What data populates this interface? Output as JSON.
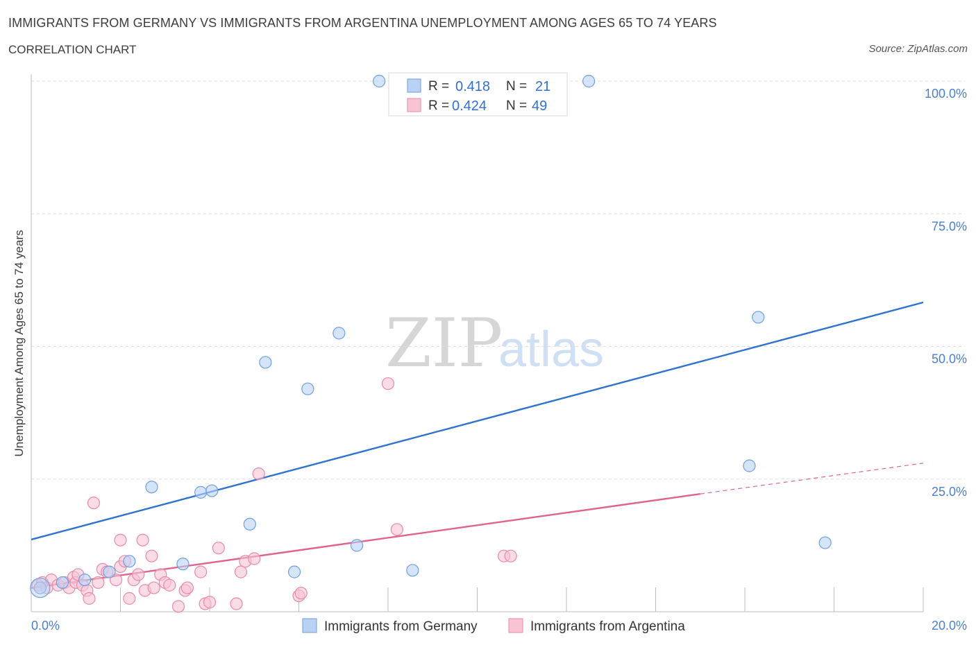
{
  "header": {
    "title": "IMMIGRANTS FROM GERMANY VS IMMIGRANTS FROM ARGENTINA UNEMPLOYMENT AMONG AGES 65 TO 74 YEARS",
    "subtitle": "CORRELATION CHART",
    "source": "Source: ZipAtlas.com"
  },
  "watermark": {
    "zip": "ZIP",
    "atlas": "atlas"
  },
  "legend": {
    "r_label": "R =",
    "n_label": "N =",
    "germany": {
      "r": "0.418",
      "n": "21"
    },
    "argentina": {
      "r": "0.424",
      "n": "49"
    }
  },
  "chart_data": {
    "type": "scatter",
    "title": "IMMIGRANTS FROM GERMANY VS IMMIGRANTS FROM ARGENTINA UNEMPLOYMENT AMONG AGES 65 TO 74 YEARS",
    "subtitle": "CORRELATION CHART",
    "xlabel": "",
    "ylabel": "Unemployment Among Ages 65 to 74 years",
    "xlim": [
      0,
      20
    ],
    "ylim": [
      0,
      100
    ],
    "x_tick_labels": [
      "0.0%",
      "20.0%"
    ],
    "y_tick_labels": [
      "100.0%",
      "75.0%",
      "50.0%",
      "25.0%"
    ],
    "y_ticks": [
      100,
      75,
      50,
      25
    ],
    "x_minor_ticks": [
      2,
      4,
      6,
      8,
      10,
      12,
      14,
      16,
      18,
      20
    ],
    "colors": {
      "germany_fill": "#b9d2f3",
      "germany_stroke": "#6d9fe0",
      "germany_line": "#2f72d0",
      "argentina_fill": "#f8c3d3",
      "argentina_stroke": "#e68aa8",
      "argentina_line": "#e0628f"
    },
    "series": [
      {
        "name": "Immigrants from Germany",
        "points": [
          [
            0.2,
            4.5
          ],
          [
            0.7,
            5.5
          ],
          [
            1.2,
            6.0
          ],
          [
            1.75,
            7.5
          ],
          [
            2.2,
            9.5
          ],
          [
            2.7,
            23.5
          ],
          [
            3.4,
            9.0
          ],
          [
            3.8,
            22.5
          ],
          [
            4.05,
            22.8
          ],
          [
            4.9,
            16.5
          ],
          [
            5.25,
            47.0
          ],
          [
            5.9,
            7.5
          ],
          [
            6.2,
            42.0
          ],
          [
            6.9,
            52.5
          ],
          [
            7.3,
            12.5
          ],
          [
            7.8,
            100
          ],
          [
            8.55,
            7.8
          ],
          [
            12.5,
            100
          ],
          [
            16.1,
            27.5
          ],
          [
            16.3,
            55.5
          ],
          [
            17.8,
            13.0
          ]
        ],
        "trend": {
          "x0": 0,
          "y0": 13.6,
          "x1": 20,
          "y1": 58.3,
          "dashed_from": null
        }
      },
      {
        "name": "Immigrants from Argentina",
        "points": [
          [
            0.15,
            5.0
          ],
          [
            0.25,
            5.5
          ],
          [
            0.35,
            4.5
          ],
          [
            0.45,
            6.0
          ],
          [
            0.6,
            5.0
          ],
          [
            0.75,
            5.5
          ],
          [
            0.85,
            4.5
          ],
          [
            0.95,
            6.5
          ],
          [
            1.0,
            5.5
          ],
          [
            1.05,
            7.0
          ],
          [
            1.15,
            5.0
          ],
          [
            1.25,
            4.0
          ],
          [
            1.3,
            2.5
          ],
          [
            1.4,
            20.5
          ],
          [
            1.5,
            5.5
          ],
          [
            1.6,
            8.0
          ],
          [
            1.7,
            7.5
          ],
          [
            1.9,
            6.0
          ],
          [
            2.0,
            8.5
          ],
          [
            2.1,
            9.5
          ],
          [
            2.2,
            2.5
          ],
          [
            2.3,
            6.0
          ],
          [
            2.4,
            7.0
          ],
          [
            2.5,
            13.5
          ],
          [
            2.55,
            4.0
          ],
          [
            2.7,
            10.5
          ],
          [
            2.75,
            4.5
          ],
          [
            2.9,
            7.0
          ],
          [
            3.0,
            5.5
          ],
          [
            3.1,
            5.0
          ],
          [
            3.3,
            1.0
          ],
          [
            3.45,
            4.0
          ],
          [
            3.5,
            4.5
          ],
          [
            3.8,
            7.5
          ],
          [
            3.9,
            1.5
          ],
          [
            4.0,
            1.8
          ],
          [
            4.2,
            12.0
          ],
          [
            4.6,
            1.5
          ],
          [
            4.7,
            7.5
          ],
          [
            4.8,
            9.5
          ],
          [
            5.0,
            10.0
          ],
          [
            5.1,
            26.0
          ],
          [
            6.0,
            3.0
          ],
          [
            8.0,
            43.0
          ],
          [
            8.2,
            15.5
          ],
          [
            10.6,
            10.5
          ],
          [
            10.75,
            10.5
          ],
          [
            6.05,
            3.5
          ],
          [
            2.0,
            13.5
          ]
        ],
        "trend": {
          "x0": 0,
          "y0": 4.5,
          "x1": 15,
          "y1": 22.2,
          "dashed_from": 15,
          "dash_x1": 20,
          "dash_y1": 28.0
        }
      }
    ],
    "legend_position": "top-center",
    "bottom_legend": [
      "Immigrants from Germany",
      "Immigrants from Argentina"
    ]
  }
}
